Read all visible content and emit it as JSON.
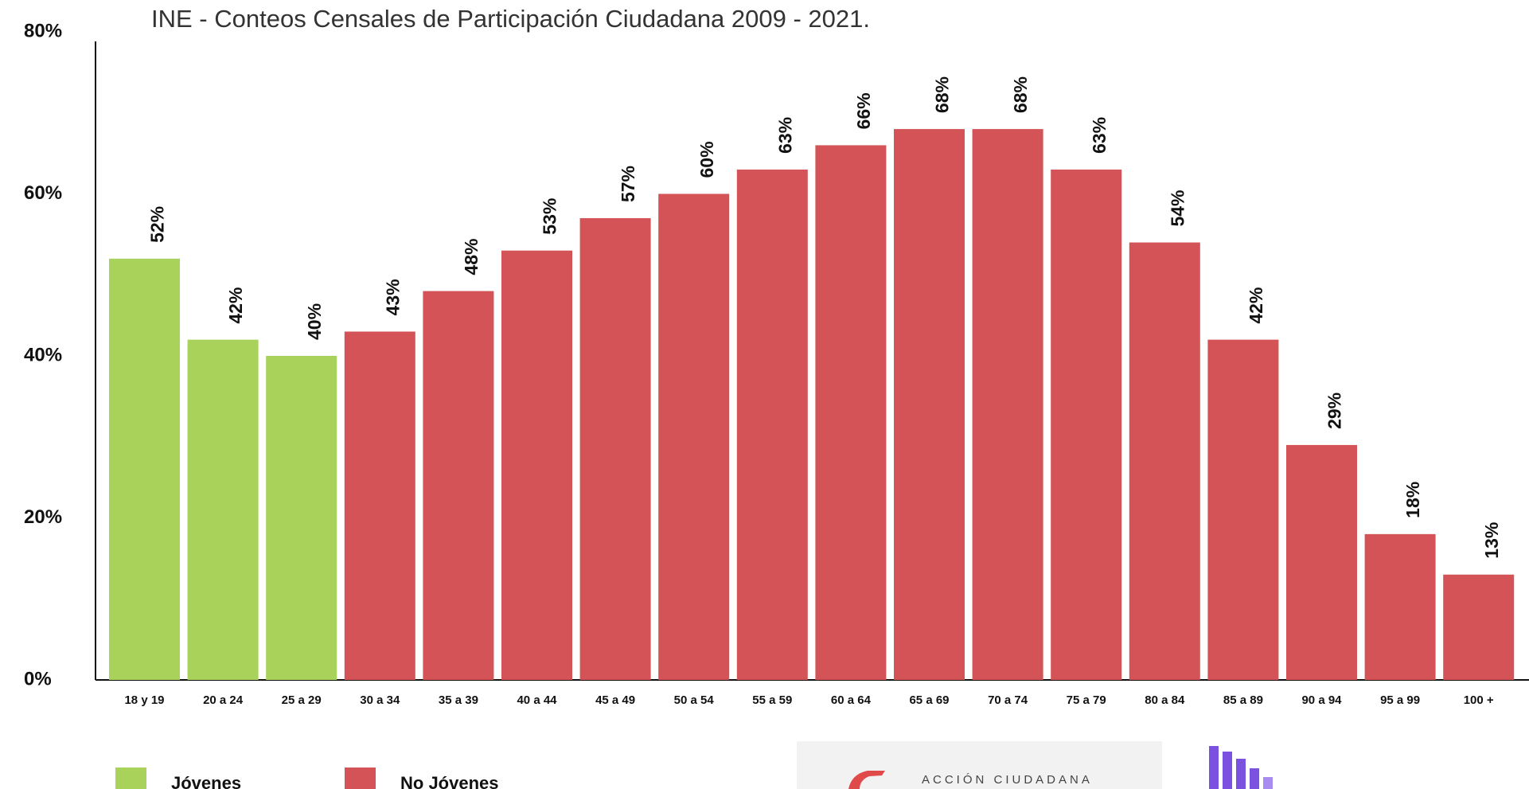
{
  "chart_data": {
    "type": "bar",
    "title": "INE - Conteos Censales de Participación Ciudadana 2009 - 2021.",
    "categories": [
      "18 y 19",
      "20 a 24",
      "25 a 29",
      "30 a 34",
      "35 a 39",
      "40 a 44",
      "45 a 49",
      "50 a 54",
      "55 a 59",
      "60 a 64",
      "65 a 69",
      "70 a 74",
      "75 a 79",
      "80 a 84",
      "85 a 89",
      "90 a 94",
      "95 a 99",
      "100 +"
    ],
    "series": [
      {
        "name": "Jóvenes",
        "color": "#a8d25a",
        "values": [
          52,
          42,
          40,
          null,
          null,
          null,
          null,
          null,
          null,
          null,
          null,
          null,
          null,
          null,
          null,
          null,
          null,
          null
        ],
        "value_labels": [
          "52%",
          "42%",
          "40%",
          null,
          null,
          null,
          null,
          null,
          null,
          null,
          null,
          null,
          null,
          null,
          null,
          null,
          null,
          null
        ]
      },
      {
        "name": "No Jóvenes",
        "color": "#d35357",
        "values": [
          null,
          null,
          null,
          43,
          48,
          53,
          57,
          60,
          63,
          66,
          68,
          68,
          63,
          54,
          42,
          29,
          18,
          13
        ],
        "value_labels": [
          null,
          null,
          null,
          "43%",
          "48%",
          "53%",
          "57%",
          "60%",
          "63%",
          "66%",
          "68%",
          "68%",
          "63%",
          "54%",
          "42%",
          "29%",
          "18%",
          "13%"
        ]
      }
    ],
    "ylim": [
      0,
      80
    ],
    "yticks": [
      {
        "value": 0,
        "label": "0%"
      },
      {
        "value": 20,
        "label": "20%"
      },
      {
        "value": 40,
        "label": "40%"
      },
      {
        "value": 60,
        "label": "60%"
      },
      {
        "value": 80,
        "label": "80%"
      }
    ],
    "grid": false
  },
  "footer": {
    "logo_text": "ACCIÓN CIUDADANA"
  }
}
